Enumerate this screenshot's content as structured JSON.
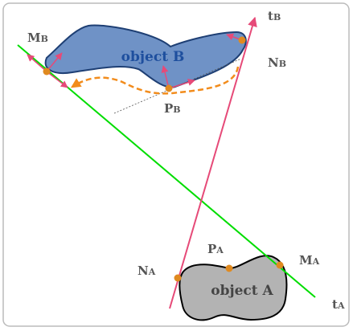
{
  "objects": {
    "b": {
      "name": "object B",
      "fill": "#6f92c6",
      "stroke": "#1e3f74",
      "label_color": "#1e4f9e"
    },
    "a": {
      "name": "object A",
      "fill": "#b3b3b3",
      "stroke": "#000000",
      "label_color": "#444444"
    }
  },
  "points": {
    "mb": "M",
    "mb_sub": "B",
    "nb": "N",
    "nb_sub": "B",
    "pb": "P",
    "pb_sub": "B",
    "ma": "M",
    "ma_sub": "A",
    "na": "N",
    "na_sub": "A",
    "pa": "P",
    "pa_sub": "A"
  },
  "lines": {
    "tb": "t",
    "tb_sub": "B",
    "ta": "t",
    "ta_sub": "A"
  },
  "colors": {
    "frame": "#bbbbbb",
    "tangent_a": "#00dd00",
    "tangent_b": "#e64a78",
    "normal_arrow": "#e64a78",
    "motion_path": "#f28c1c",
    "contact_point": "#e08a20",
    "helper_line": "#555555",
    "label": "#555555"
  }
}
